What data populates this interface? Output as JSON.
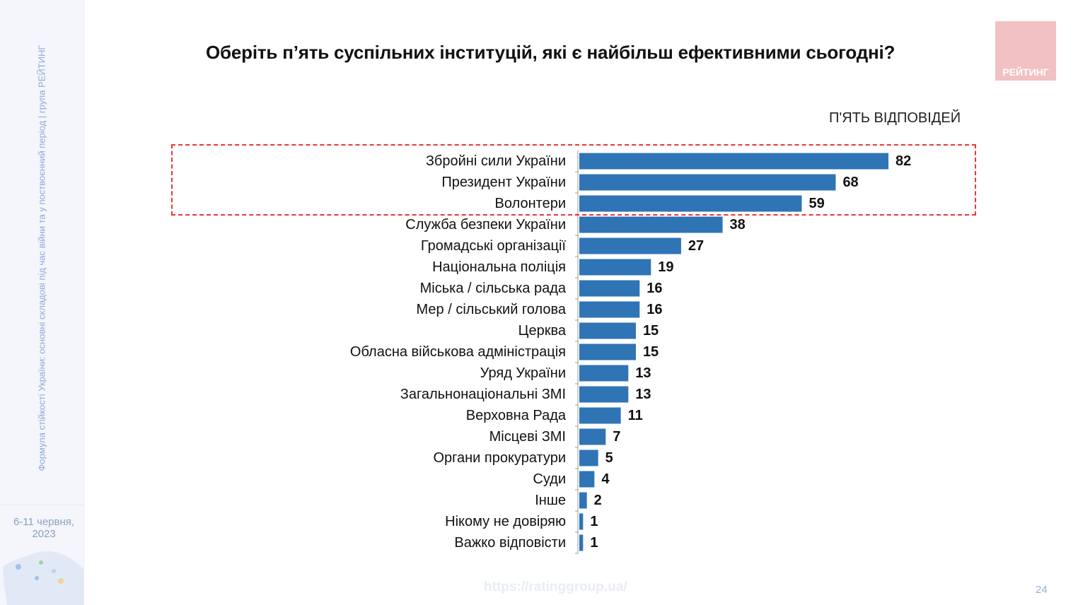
{
  "sidebar": {
    "caption": "Формула стійкості України: основні складові під час війни та у поствоєнний період | група РЕЙТИНГ",
    "date_line1": "6-11 червня,",
    "date_line2": "2023"
  },
  "header": {
    "title": "Оберіть п’ять суспільних інституцій, які є найбільш ефективними сьогодні?",
    "logo_text": "РЕЙТИНГ"
  },
  "chart_data": {
    "type": "bar",
    "orientation": "horizontal",
    "title": "Оберіть п’ять суспільних інституцій, які є найбільш ефективними сьогодні?",
    "subtitle": "П'ЯТЬ ВІДПОВІДЕЙ",
    "categories": [
      "Збройні сили України",
      "Президент України",
      "Волонтери",
      "Служба безпеки України",
      "Громадські організації",
      "Національна поліція",
      "Міська / сільська рада",
      "Мер / сільський голова",
      "Церква",
      "Обласна військова адміністрація",
      "Уряд України",
      "Загальнонаціональні ЗМІ",
      "Верховна Рада",
      "Місцеві ЗМІ",
      "Органи прокуратури",
      "Суди",
      "Інше",
      "Нікому не довіряю",
      "Важко відповісти"
    ],
    "values": [
      82,
      68,
      59,
      38,
      27,
      19,
      16,
      16,
      15,
      15,
      13,
      13,
      11,
      7,
      5,
      4,
      2,
      1,
      1
    ],
    "highlighted_categories": [
      "Збройні сили України",
      "Президент України",
      "Волонтери"
    ],
    "xlim": [
      0,
      100
    ],
    "grid": false,
    "legend": "none",
    "bar_color": "#2f74b5"
  },
  "footer": {
    "url": "https://ratinggroup.ua/",
    "page_number": "24"
  }
}
